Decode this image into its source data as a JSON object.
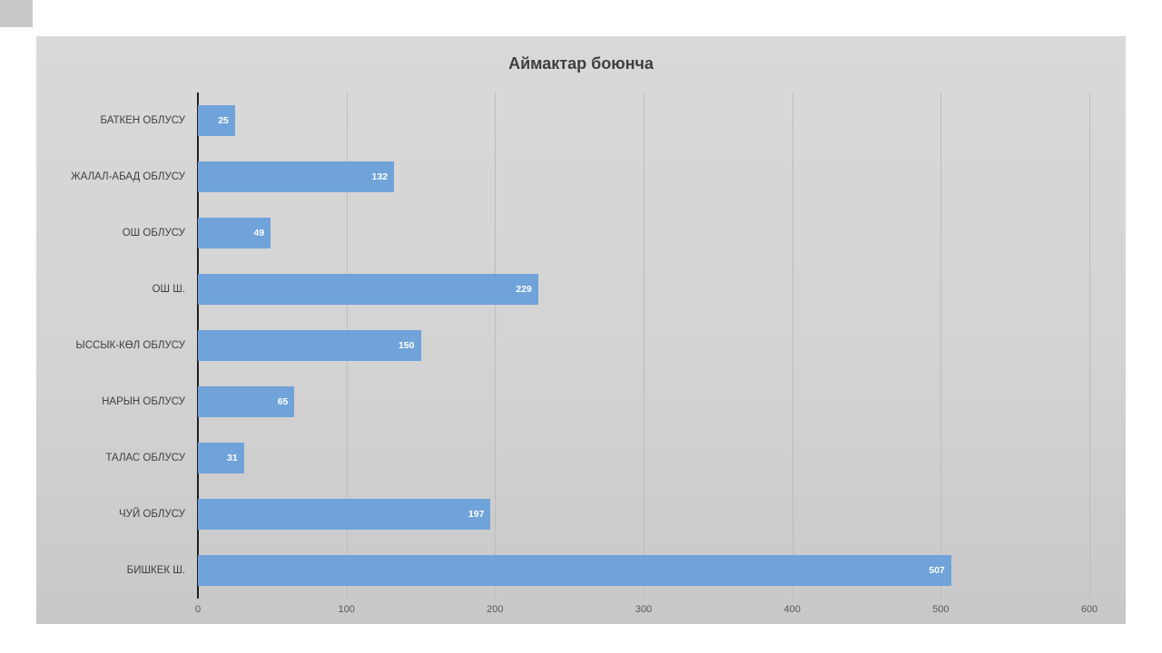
{
  "chart_data": {
    "type": "bar",
    "orientation": "horizontal",
    "title": "Аймактар боюнча",
    "categories": [
      "БАТКЕН ОБЛУСУ",
      "ЖАЛАЛ-АБАД ОБЛУСУ",
      "ОШ ОБЛУСУ",
      "ОШ Ш.",
      "ЫССЫК-КӨЛ ОБЛУСУ",
      "НАРЫН ОБЛУСУ",
      "ТАЛАС ОБЛУСУ",
      "ЧУЙ ОБЛУСУ",
      "БИШКЕК Ш."
    ],
    "values": [
      25,
      132,
      49,
      229,
      150,
      65,
      31,
      197,
      507
    ],
    "xlim": [
      0,
      600
    ],
    "xticks": [
      0,
      100,
      200,
      300,
      400,
      500,
      600
    ],
    "bar_color": "#6fa3da",
    "data_labels": true,
    "legend": "none",
    "grid": "vertical",
    "background": "#d3d3d3"
  }
}
